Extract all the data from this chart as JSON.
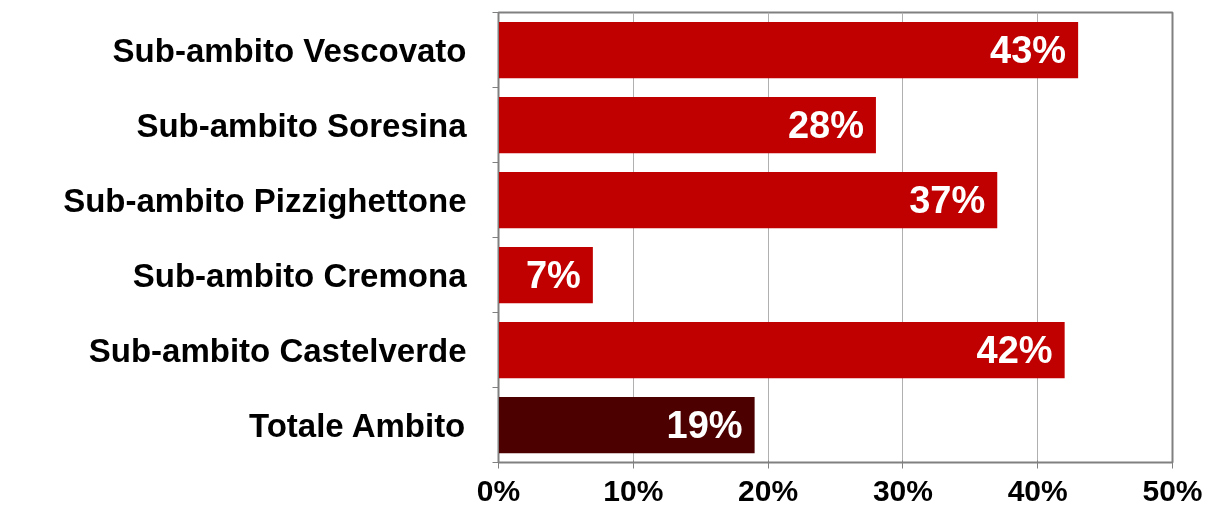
{
  "chart_data": {
    "type": "bar",
    "orientation": "horizontal",
    "categories": [
      "Sub-ambito Vescovato",
      "Sub-ambito Soresina",
      "Sub-ambito Pizzighettone",
      "Sub-ambito Cremona",
      "Sub-ambito Castelverde",
      "Totale Ambito"
    ],
    "values": [
      43,
      28,
      37,
      7,
      42,
      19
    ],
    "colors": [
      "#c00000",
      "#c00000",
      "#c00000",
      "#c00000",
      "#c00000",
      "#4d0000"
    ],
    "value_labels": [
      "43%",
      "28%",
      "37%",
      "7%",
      "42%",
      "19%"
    ],
    "xlim": [
      0,
      50
    ],
    "xticks": [
      {
        "value": 0,
        "label": "0%"
      },
      {
        "value": 10,
        "label": "10%"
      },
      {
        "value": 20,
        "label": "20%"
      },
      {
        "value": 30,
        "label": "30%"
      },
      {
        "value": 40,
        "label": "40%"
      },
      {
        "value": 50,
        "label": "50%"
      }
    ],
    "grid": "x"
  }
}
